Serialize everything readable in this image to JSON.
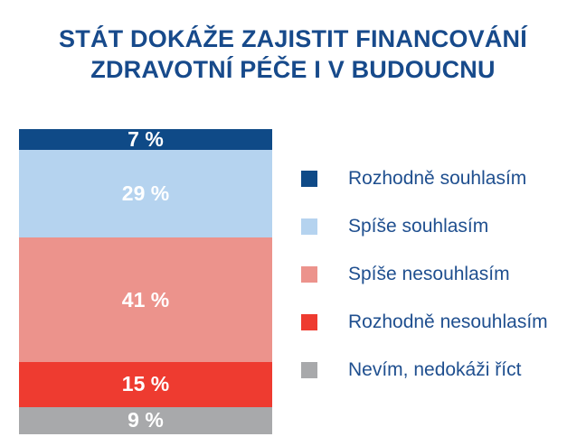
{
  "chart_data": {
    "type": "bar",
    "orientation": "stacked-vertical",
    "title_lines": [
      "STÁT DOKÁŽE ZAJISTIT FINANCOVÁNÍ",
      "ZDRAVOTNÍ PÉČE I V BUDOUCNU"
    ],
    "series": [
      {
        "name": "Rozhodně souhlasím",
        "value": 7,
        "label": "7 %",
        "color": "#0f4a87"
      },
      {
        "name": "Spíše souhlasím",
        "value": 29,
        "label": "29 %",
        "color": "#b5d3ef"
      },
      {
        "name": "Spíše nesouhlasím",
        "value": 41,
        "label": "41 %",
        "color": "#ec938c"
      },
      {
        "name": "Rozhodně nesouhlasím",
        "value": 15,
        "label": "15 %",
        "color": "#ee3b30"
      },
      {
        "name": "Nevím, nedokáži říct",
        "value": 9,
        "label": "9 %",
        "color": "#a8a9ab"
      }
    ],
    "unit": "%",
    "legend_position": "right"
  }
}
